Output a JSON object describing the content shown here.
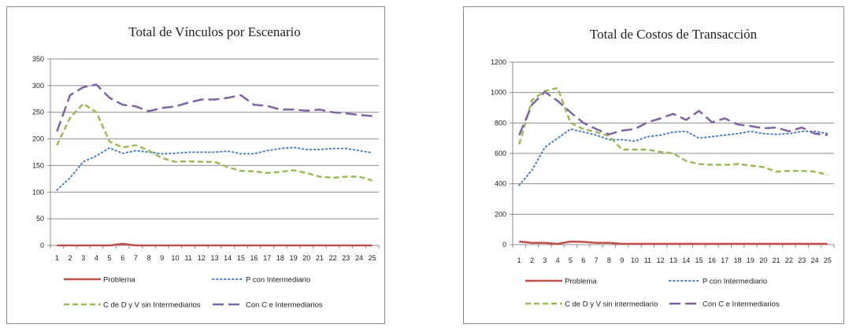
{
  "chart_data": [
    {
      "type": "line",
      "title": "Total de Vínculos por Escenario",
      "xlabel": "",
      "ylabel": "",
      "categories": [
        "1",
        "2",
        "3",
        "4",
        "5",
        "6",
        "7",
        "8",
        "9",
        "10",
        "11",
        "12",
        "13",
        "14",
        "15",
        "16",
        "17",
        "18",
        "19",
        "20",
        "21",
        "22",
        "23",
        "24",
        "25"
      ],
      "ylim": [
        0,
        350
      ],
      "yticks": [
        0,
        50,
        100,
        150,
        200,
        250,
        300,
        350
      ],
      "grid": true,
      "legend_position": "bottom",
      "series": [
        {
          "name": "Problema",
          "color": "#c0504d",
          "style": "solid",
          "values": [
            0,
            0,
            0,
            0,
            0,
            3,
            0,
            0,
            0,
            0,
            0,
            0,
            0,
            0,
            0,
            0,
            0,
            0,
            0,
            0,
            0,
            0,
            0,
            0,
            0
          ]
        },
        {
          "name": "P con Intermediario",
          "color": "#4f81bd",
          "style": "dotted",
          "values": [
            104,
            127,
            157,
            168,
            183,
            173,
            178,
            175,
            172,
            173,
            175,
            175,
            175,
            177,
            172,
            172,
            178,
            182,
            184,
            180,
            180,
            182,
            182,
            178,
            174
          ]
        },
        {
          "name": "C de D y V sin Intermediarios",
          "color": "#9bbb59",
          "style": "dashed",
          "values": [
            188,
            240,
            266,
            250,
            195,
            184,
            188,
            178,
            164,
            157,
            158,
            157,
            157,
            147,
            140,
            139,
            136,
            138,
            141,
            136,
            129,
            127,
            129,
            129,
            122
          ]
        },
        {
          "name": "Con C e Intermediarios",
          "color": "#8064a2",
          "style": "longdash",
          "values": [
            214,
            282,
            297,
            302,
            277,
            264,
            261,
            252,
            258,
            261,
            268,
            274,
            274,
            277,
            282,
            264,
            262,
            255,
            255,
            253,
            255,
            250,
            248,
            245,
            243
          ]
        }
      ]
    },
    {
      "type": "line",
      "title": "Total de Costos de Transacción",
      "xlabel": "",
      "ylabel": "",
      "categories": [
        "1",
        "2",
        "3",
        "4",
        "5",
        "6",
        "7",
        "8",
        "9",
        "10",
        "11",
        "12",
        "13",
        "14",
        "15",
        "16",
        "17",
        "18",
        "19",
        "20",
        "21",
        "22",
        "23",
        "24",
        "25"
      ],
      "ylim": [
        0,
        1200
      ],
      "yticks": [
        0,
        200,
        400,
        600,
        800,
        1000,
        1200
      ],
      "grid": true,
      "legend_position": "bottom",
      "series": [
        {
          "name": "Problema",
          "color": "#c0504d",
          "style": "solid",
          "values": [
            20,
            12,
            12,
            5,
            20,
            18,
            12,
            12,
            5,
            5,
            5,
            5,
            5,
            5,
            5,
            5,
            5,
            5,
            5,
            5,
            5,
            5,
            5,
            5,
            5
          ]
        },
        {
          "name": "P con Intermediario",
          "color": "#4f81bd",
          "style": "dotted",
          "values": [
            390,
            490,
            640,
            700,
            760,
            740,
            720,
            690,
            690,
            680,
            710,
            720,
            740,
            745,
            700,
            710,
            720,
            730,
            745,
            730,
            725,
            730,
            745,
            745,
            730
          ]
        },
        {
          "name": "C de D y V sin intermediario",
          "color": "#9bbb59",
          "style": "dashed",
          "values": [
            660,
            950,
            1010,
            1030,
            800,
            760,
            740,
            715,
            625,
            625,
            625,
            610,
            600,
            550,
            530,
            525,
            525,
            530,
            520,
            510,
            480,
            485,
            485,
            480,
            460
          ]
        },
        {
          "name": "Con C e Intermediarios",
          "color": "#8064a2",
          "style": "longdash",
          "values": [
            720,
            920,
            1005,
            945,
            870,
            800,
            760,
            725,
            750,
            760,
            805,
            830,
            860,
            820,
            880,
            805,
            830,
            790,
            780,
            765,
            770,
            745,
            770,
            730,
            720
          ]
        }
      ]
    }
  ]
}
